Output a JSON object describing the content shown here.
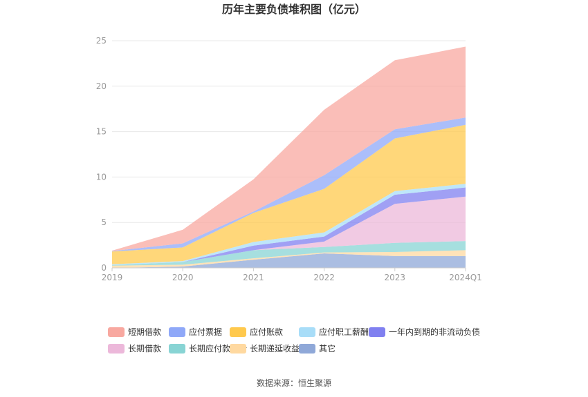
{
  "chart_data": {
    "type": "area",
    "title": "历年主要负债堆积图（亿元）",
    "categories": [
      "2019",
      "2020",
      "2021",
      "2022",
      "2023",
      "2024Q1"
    ],
    "ylim": [
      0,
      25
    ],
    "yticks": [
      0,
      5,
      10,
      15,
      20,
      25
    ],
    "stacked": true,
    "grid": true,
    "legend_position": "bottom",
    "series": [
      {
        "name": "短期借款",
        "color": "#F8A8A0",
        "values": [
          0.05,
          1.5,
          3.55,
          7.2,
          7.6,
          7.8
        ]
      },
      {
        "name": "应付票据",
        "color": "#8FA8F8",
        "values": [
          0.05,
          0.45,
          0.15,
          1.5,
          1.0,
          0.8
        ]
      },
      {
        "name": "应付账款",
        "color": "#FFC94D",
        "values": [
          1.4,
          1.5,
          3.2,
          4.8,
          5.8,
          6.5
        ]
      },
      {
        "name": "应付职工薪酬",
        "color": "#A8DDF8",
        "values": [
          0.1,
          0.1,
          0.4,
          0.45,
          0.4,
          0.4
        ]
      },
      {
        "name": "一年内到期的非流动负债",
        "color": "#8080F0",
        "values": [
          0.0,
          0.0,
          0.5,
          0.55,
          1.0,
          1.0
        ]
      },
      {
        "name": "长期借款",
        "color": "#ECB8DA",
        "values": [
          0.0,
          0.0,
          0.0,
          0.6,
          4.3,
          4.9
        ]
      },
      {
        "name": "长期应付款合计",
        "color": "#88D4D4",
        "values": [
          0.05,
          0.3,
          0.9,
          0.6,
          1.0,
          1.0
        ]
      },
      {
        "name": "长期递延收益",
        "color": "#FFD9A0",
        "values": [
          0.25,
          0.2,
          0.15,
          0.1,
          0.45,
          0.65
        ]
      },
      {
        "name": "其它",
        "color": "#8FA8D8",
        "values": [
          0.0,
          0.15,
          0.9,
          1.6,
          1.3,
          1.3
        ]
      }
    ]
  },
  "source_text": "数据来源：恒生聚源"
}
